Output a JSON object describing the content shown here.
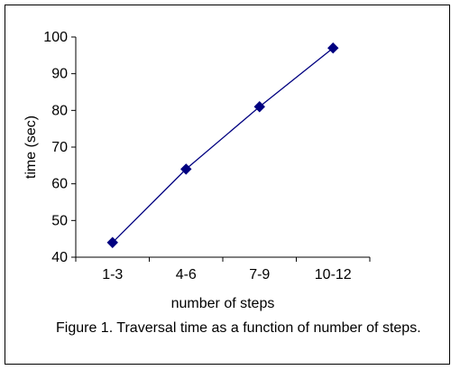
{
  "chart_data": {
    "type": "line",
    "categories": [
      "1-3",
      "4-6",
      "7-9",
      "10-12"
    ],
    "series": [
      {
        "values": [
          44,
          64,
          81,
          97
        ],
        "color": "#000080",
        "marker": "diamond"
      }
    ],
    "xlabel": "number of steps",
    "ylabel": "time (sec)",
    "ylim": [
      40,
      100
    ],
    "yticks": [
      40,
      50,
      60,
      70,
      80,
      90,
      100
    ],
    "grid": false,
    "legend": "none"
  },
  "caption": "Figure 1. Traversal time as a function of number of steps."
}
